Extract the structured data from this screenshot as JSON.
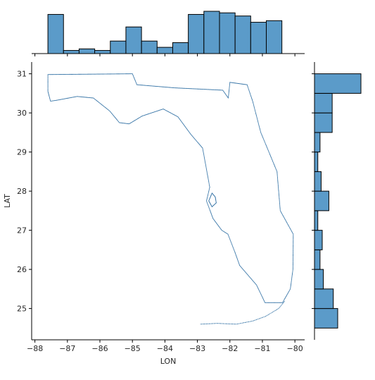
{
  "chart_data": {
    "type": "scatter",
    "subtype": "jointplot",
    "title": "",
    "xlabel": "LON",
    "ylabel": "LAT",
    "xlim": [
      -88.1,
      -79.7
    ],
    "ylim": [
      24.2,
      31.3
    ],
    "x_ticks": [
      -88,
      -87,
      -86,
      -85,
      -84,
      -83,
      -82,
      -81,
      -80
    ],
    "y_ticks": [
      25,
      26,
      27,
      28,
      29,
      30,
      31
    ],
    "grid": false,
    "colors": {
      "points": "#2f6fa3",
      "hist_fill": "#5b9bc9",
      "hist_edge": "#000000",
      "axes": "#000000",
      "text": "#262626"
    },
    "outline": [
      [
        -87.6,
        30.98
      ],
      [
        -85.0,
        31.0
      ],
      [
        -84.86,
        30.72
      ],
      [
        -83.7,
        30.64
      ],
      [
        -82.22,
        30.58
      ],
      [
        -82.05,
        30.38
      ],
      [
        -82.0,
        30.78
      ],
      [
        -81.47,
        30.72
      ],
      [
        -81.3,
        30.3
      ],
      [
        -81.05,
        29.5
      ],
      [
        -80.55,
        28.5
      ],
      [
        -80.45,
        27.5
      ],
      [
        -80.05,
        26.9
      ],
      [
        -80.06,
        26.0
      ],
      [
        -80.14,
        25.5
      ],
      [
        -80.38,
        25.15
      ],
      [
        -80.92,
        25.15
      ],
      [
        -81.18,
        25.6
      ],
      [
        -81.7,
        26.1
      ],
      [
        -81.85,
        26.45
      ],
      [
        -82.06,
        26.9
      ],
      [
        -82.25,
        27.0
      ],
      [
        -82.52,
        27.3
      ],
      [
        -82.72,
        27.75
      ],
      [
        -82.62,
        28.1
      ],
      [
        -82.73,
        28.6
      ],
      [
        -82.84,
        29.1
      ],
      [
        -83.2,
        29.45
      ],
      [
        -83.6,
        29.9
      ],
      [
        -84.05,
        30.1
      ],
      [
        -84.7,
        29.92
      ],
      [
        -85.1,
        29.72
      ],
      [
        -85.4,
        29.75
      ],
      [
        -85.7,
        30.05
      ],
      [
        -86.2,
        30.38
      ],
      [
        -86.7,
        30.42
      ],
      [
        -87.35,
        30.32
      ],
      [
        -87.52,
        30.3
      ],
      [
        -87.6,
        30.55
      ],
      [
        -87.6,
        30.98
      ]
    ],
    "keys": [
      [
        -82.9,
        24.6
      ],
      [
        -82.4,
        24.62
      ],
      [
        -81.8,
        24.6
      ],
      [
        -81.3,
        24.68
      ],
      [
        -80.9,
        24.8
      ],
      [
        -80.5,
        25.0
      ],
      [
        -80.3,
        25.2
      ]
    ],
    "tampa_bay": [
      [
        -82.55,
        27.95
      ],
      [
        -82.45,
        27.85
      ],
      [
        -82.42,
        27.7
      ],
      [
        -82.55,
        27.6
      ],
      [
        -82.65,
        27.75
      ],
      [
        -82.55,
        27.95
      ]
    ],
    "marginal_x": {
      "bin_edges": [
        -87.6,
        -87.12,
        -86.64,
        -86.16,
        -85.68,
        -85.2,
        -84.72,
        -84.24,
        -83.76,
        -83.28,
        -82.8,
        -82.32,
        -81.84,
        -81.36,
        -80.88,
        -80.4,
        -80.0
      ],
      "counts": [
        25,
        2,
        3,
        2,
        8,
        17,
        8,
        4,
        7,
        25,
        27,
        26,
        24,
        20,
        21,
        0
      ]
    },
    "marginal_y": {
      "bin_edges": [
        24.5,
        25.0,
        25.5,
        26.0,
        26.5,
        27.0,
        27.5,
        28.0,
        28.5,
        29.0,
        29.5,
        30.0,
        30.5,
        31.0
      ],
      "counts": [
        21,
        17,
        8,
        5,
        7,
        3,
        13,
        6,
        3,
        5,
        16,
        16,
        42
      ]
    }
  }
}
